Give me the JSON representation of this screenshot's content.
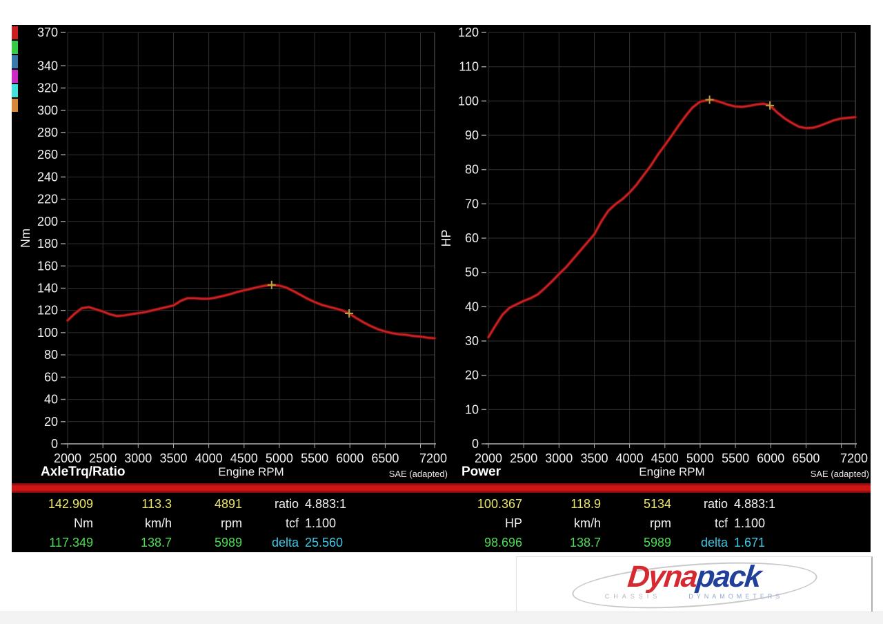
{
  "colors": {
    "panel_bg": "#000000",
    "accent_red_bar": "#cf1414",
    "curve_red": "#c92121",
    "marker_yellow": "#b5a53c",
    "grid": "#323232",
    "text": "#f0f0f0",
    "value_primary_yellow": "#e9e56e",
    "value_secondary_green": "#4edd55",
    "delta_cyan": "#3ec9e8",
    "logo_red": "#d62a33",
    "logo_blue": "#20409a"
  },
  "legend_chips": [
    {
      "name": "channel-1",
      "color": "#cc2020"
    },
    {
      "name": "channel-2",
      "color": "#33cc44"
    },
    {
      "name": "channel-3",
      "color": "#3a7aaa"
    },
    {
      "name": "channel-4",
      "color": "#cc2bc4"
    },
    {
      "name": "channel-5",
      "color": "#3fe3dc"
    },
    {
      "name": "channel-6",
      "color": "#d98638"
    }
  ],
  "chart_data": [
    {
      "type": "line",
      "title": "AxleTrq/Ratio",
      "xlabel": "Engine RPM",
      "note": "SAE (adapted)",
      "ylabel": "Nm",
      "xlim": [
        2000,
        7200
      ],
      "ylim": [
        0,
        370
      ],
      "y_ticks": [
        0,
        20,
        40,
        60,
        80,
        100,
        120,
        140,
        160,
        180,
        200,
        220,
        240,
        260,
        280,
        300,
        320,
        340,
        370
      ],
      "x_ticks": [
        2000,
        2500,
        3000,
        3500,
        4000,
        4500,
        5000,
        5500,
        6000,
        6500,
        7000
      ],
      "x_labeled_ticks": [
        2000,
        2500,
        3000,
        3500,
        4000,
        4500,
        5000,
        5500,
        6000,
        6500
      ],
      "x_end_label": "7200",
      "grid": true,
      "line_color": "#c92121",
      "marker_color": "#b5a53c",
      "series": [
        [
          2000,
          111
        ],
        [
          2100,
          117
        ],
        [
          2200,
          122
        ],
        [
          2300,
          123
        ],
        [
          2400,
          121
        ],
        [
          2500,
          119
        ],
        [
          2600,
          116.5
        ],
        [
          2700,
          115
        ],
        [
          2800,
          115.5
        ],
        [
          2900,
          116.5
        ],
        [
          3000,
          117.5
        ],
        [
          3100,
          118.5
        ],
        [
          3200,
          120
        ],
        [
          3300,
          121.5
        ],
        [
          3400,
          123
        ],
        [
          3500,
          124.5
        ],
        [
          3600,
          128.5
        ],
        [
          3700,
          131
        ],
        [
          3800,
          131
        ],
        [
          3900,
          130.5
        ],
        [
          4000,
          130.5
        ],
        [
          4100,
          131.5
        ],
        [
          4200,
          133
        ],
        [
          4300,
          134.5
        ],
        [
          4400,
          136.5
        ],
        [
          4500,
          138
        ],
        [
          4600,
          139.5
        ],
        [
          4700,
          141
        ],
        [
          4800,
          142.3
        ],
        [
          4891,
          142.9
        ],
        [
          5000,
          142.3
        ],
        [
          5100,
          140.5
        ],
        [
          5200,
          137.4
        ],
        [
          5300,
          134
        ],
        [
          5400,
          130.5
        ],
        [
          5500,
          127.5
        ],
        [
          5600,
          125
        ],
        [
          5700,
          123.3
        ],
        [
          5800,
          121.7
        ],
        [
          5900,
          119.8
        ],
        [
          5989,
          117.3
        ],
        [
          6100,
          112.7
        ],
        [
          6200,
          109
        ],
        [
          6300,
          105.8
        ],
        [
          6400,
          103
        ],
        [
          6500,
          101
        ],
        [
          6600,
          99.5
        ],
        [
          6700,
          98.5
        ],
        [
          6800,
          98
        ],
        [
          6900,
          97
        ],
        [
          7000,
          96.5
        ],
        [
          7100,
          95.5
        ],
        [
          7200,
          95
        ]
      ],
      "markers": [
        [
          4891,
          142.909
        ],
        [
          5989,
          117.349
        ]
      ]
    },
    {
      "type": "line",
      "title": "Power",
      "xlabel": "Engine RPM",
      "note": "SAE (adapted)",
      "ylabel": "HP",
      "xlim": [
        2000,
        7200
      ],
      "ylim": [
        0,
        120
      ],
      "y_ticks": [
        0,
        10,
        20,
        30,
        40,
        50,
        60,
        70,
        80,
        90,
        100,
        110,
        120
      ],
      "x_ticks": [
        2000,
        2500,
        3000,
        3500,
        4000,
        4500,
        5000,
        5500,
        6000,
        6500,
        7000
      ],
      "x_labeled_ticks": [
        2000,
        2500,
        3000,
        3500,
        4000,
        4500,
        5000,
        5500,
        6000,
        6500
      ],
      "x_end_label": "7200",
      "grid": true,
      "line_color": "#c92121",
      "marker_color": "#b5a53c",
      "series": [
        [
          2000,
          31.1
        ],
        [
          2100,
          34.5
        ],
        [
          2200,
          37.7
        ],
        [
          2300,
          39.7
        ],
        [
          2400,
          40.7
        ],
        [
          2500,
          41.7
        ],
        [
          2600,
          42.5
        ],
        [
          2700,
          43.6
        ],
        [
          2800,
          45.4
        ],
        [
          2900,
          47.4
        ],
        [
          3000,
          49.5
        ],
        [
          3100,
          51.5
        ],
        [
          3200,
          53.9
        ],
        [
          3300,
          56.3
        ],
        [
          3400,
          58.7
        ],
        [
          3500,
          61.1
        ],
        [
          3600,
          64.9
        ],
        [
          3700,
          68
        ],
        [
          3800,
          69.9
        ],
        [
          3900,
          71.4
        ],
        [
          4000,
          73.3
        ],
        [
          4100,
          75.6
        ],
        [
          4200,
          78.4
        ],
        [
          4300,
          81.1
        ],
        [
          4400,
          84.3
        ],
        [
          4500,
          87.1
        ],
        [
          4600,
          90
        ],
        [
          4700,
          93
        ],
        [
          4800,
          95.8
        ],
        [
          4891,
          98.1
        ],
        [
          5000,
          99.8
        ],
        [
          5100,
          100.2
        ],
        [
          5134,
          100.4
        ],
        [
          5200,
          100.2
        ],
        [
          5300,
          99.6
        ],
        [
          5400,
          98.9
        ],
        [
          5500,
          98.4
        ],
        [
          5600,
          98.3
        ],
        [
          5700,
          98.6
        ],
        [
          5800,
          99
        ],
        [
          5900,
          99.2
        ],
        [
          5989,
          98.7
        ],
        [
          6100,
          96.5
        ],
        [
          6200,
          94.9
        ],
        [
          6300,
          93.6
        ],
        [
          6400,
          92.5
        ],
        [
          6500,
          92.1
        ],
        [
          6600,
          92.2
        ],
        [
          6700,
          92.8
        ],
        [
          6800,
          93.6
        ],
        [
          6900,
          94.4
        ],
        [
          7000,
          94.9
        ],
        [
          7100,
          95.1
        ],
        [
          7200,
          95.3
        ]
      ],
      "markers": [
        [
          5134,
          100.367
        ],
        [
          5989,
          98.696
        ]
      ]
    }
  ],
  "readout": {
    "left": {
      "primary": [
        "142.909",
        "113.3",
        "4891"
      ],
      "units": [
        "Nm",
        "km/h",
        "rpm"
      ],
      "secondary": [
        "117.349",
        "138.7",
        "5989"
      ],
      "ratio_label": "ratio",
      "ratio_value": "4.883:1",
      "tcf_label": "tcf",
      "tcf_value": "1.100",
      "delta_label": "delta",
      "delta_value": "25.560"
    },
    "right": {
      "primary": [
        "100.367",
        "118.9",
        "5134"
      ],
      "units": [
        "HP",
        "km/h",
        "rpm"
      ],
      "secondary": [
        "98.696",
        "138.7",
        "5989"
      ],
      "ratio_label": "ratio",
      "ratio_value": "4.883:1",
      "tcf_label": "tcf",
      "tcf_value": "1.100",
      "delta_label": "delta",
      "delta_value": "1.671"
    }
  },
  "logo": {
    "word_a": "Dyna",
    "word_b": "pack",
    "sub_a": "CHASSIS",
    "sub_b": "DYNAMOMETERS"
  }
}
